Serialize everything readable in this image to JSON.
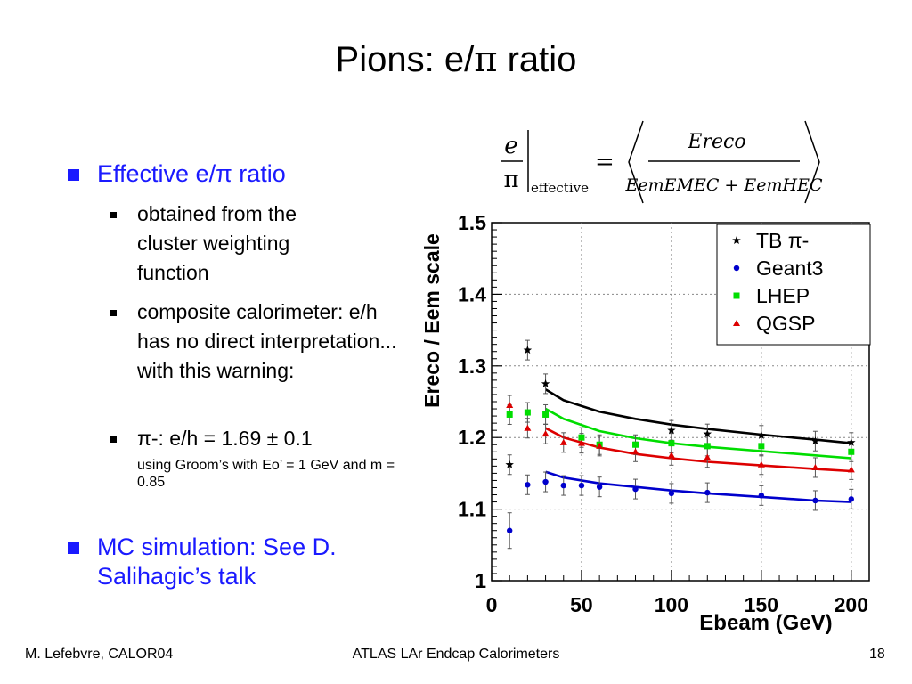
{
  "slide": {
    "title_prefix": "Pions: e/",
    "title_pi": "π",
    "title_suffix": " ratio",
    "bullet1": "Effective e/π ratio",
    "sub1": "obtained from the cluster weighting function",
    "sub2": "composite calorimeter: e/h has no direct interpretation... with this warning:",
    "sub3_main": "π-: e/h = 1.69 ± 0.1",
    "sub3_small": "using Groom’s with Eo’ = 1 GeV and m = 0.85",
    "bullet2": "MC simulation: See D. Salihagic’s talk"
  },
  "formula": {
    "numer": "e",
    "denom": "π",
    "subscript": "effective",
    "rhs_numer": "Ereco",
    "rhs_denom": "EemEMEC + EemHEC"
  },
  "footer": {
    "left": "M. Lefebvre, CALOR04",
    "center": "ATLAS LAr Endcap Calorimeters",
    "right": "18"
  },
  "chart_data": {
    "type": "scatter",
    "xlabel": "Ebeam (GeV)",
    "ylabel": "Ereco / Eem scale",
    "xlim": [
      0,
      210
    ],
    "ylim": [
      1.0,
      1.5
    ],
    "xticks": [
      0,
      50,
      100,
      150,
      200
    ],
    "yticks": [
      1,
      1.1,
      1.2,
      1.3,
      1.4,
      1.5
    ],
    "ytick_labels": [
      "1",
      "1.1",
      "1.2",
      "1.3",
      "1.4",
      "1.5"
    ],
    "grid": true,
    "legend_position": "top-right",
    "series": [
      {
        "name": "TB π-",
        "color": "#000000",
        "marker": "star",
        "x": [
          10,
          20,
          30,
          100,
          120,
          150,
          180,
          200
        ],
        "y": [
          1.162,
          1.322,
          1.275,
          1.21,
          1.205,
          1.203,
          1.195,
          1.193
        ],
        "curve_x": [
          30,
          40,
          60,
          80,
          100,
          120,
          150,
          180,
          200
        ],
        "curve_y": [
          1.267,
          1.252,
          1.236,
          1.226,
          1.218,
          1.212,
          1.204,
          1.197,
          1.192
        ]
      },
      {
        "name": "Geant3",
        "color": "#0000cc",
        "marker": "circle",
        "x": [
          10,
          20,
          30,
          40,
          50,
          60,
          80,
          100,
          120,
          150,
          180,
          200
        ],
        "y": [
          1.07,
          1.134,
          1.138,
          1.133,
          1.133,
          1.131,
          1.128,
          1.122,
          1.123,
          1.119,
          1.112,
          1.114
        ],
        "curve_x": [
          30,
          40,
          60,
          80,
          100,
          120,
          150,
          180,
          200
        ],
        "curve_y": [
          1.152,
          1.144,
          1.136,
          1.131,
          1.126,
          1.122,
          1.117,
          1.112,
          1.11
        ]
      },
      {
        "name": "LHEP",
        "color": "#00dd00",
        "marker": "square",
        "x": [
          10,
          20,
          30,
          50,
          60,
          80,
          100,
          120,
          150,
          200
        ],
        "y": [
          1.232,
          1.235,
          1.232,
          1.2,
          1.19,
          1.19,
          1.192,
          1.188,
          1.188,
          1.18
        ],
        "curve_x": [
          30,
          40,
          60,
          80,
          100,
          120,
          150,
          180,
          200
        ],
        "curve_y": [
          1.24,
          1.226,
          1.209,
          1.199,
          1.192,
          1.187,
          1.181,
          1.175,
          1.171
        ]
      },
      {
        "name": "QGSP",
        "color": "#dd0000",
        "marker": "triangle",
        "x": [
          10,
          20,
          30,
          40,
          50,
          60,
          80,
          100,
          120,
          150,
          180,
          200
        ],
        "y": [
          1.245,
          1.213,
          1.205,
          1.193,
          1.192,
          1.188,
          1.18,
          1.175,
          1.172,
          1.162,
          1.158,
          1.155
        ],
        "curve_x": [
          30,
          40,
          60,
          80,
          100,
          120,
          150,
          180,
          200
        ],
        "curve_y": [
          1.213,
          1.2,
          1.186,
          1.177,
          1.171,
          1.166,
          1.161,
          1.156,
          1.153
        ]
      }
    ]
  }
}
